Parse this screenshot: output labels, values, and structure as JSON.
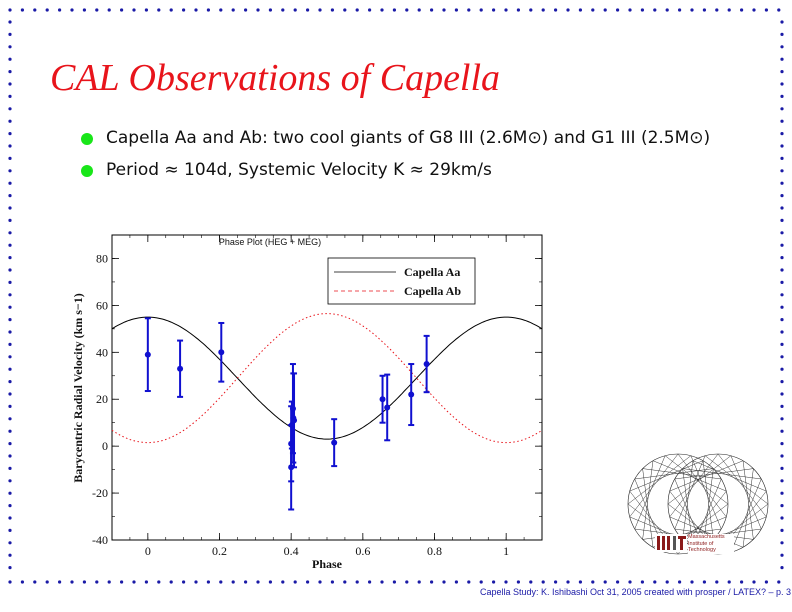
{
  "slide": {
    "title": "CAL Observations of Capella",
    "bullets": [
      {
        "text": "Capella Aa and Ab: two cool giants of G8 III (2.6M⊙) and G1 III (2.5M⊙)"
      },
      {
        "text": "Period ≈ 104d, Systemic Velocity K ≈ 29km/s"
      }
    ],
    "footer": "Capella Study: K. Ishibashi Oct 31, 2005 created with prosper / LATEX? – p. 3",
    "logo_text": "Massachusetts Institute of Technology",
    "colors": {
      "title": "#e8141b",
      "bullet": "#19e619",
      "border_dots": "#1a1aa6",
      "data": "#1010d0"
    }
  },
  "chart_data": {
    "type": "scatter",
    "title": "Phase Plot (HEG + MEG)",
    "xlabel": "Phase",
    "ylabel": "Barycentric Radial Velocity (km s−1)",
    "xlim": [
      -0.1,
      1.1
    ],
    "ylim": [
      -40,
      90
    ],
    "xticks": [
      0,
      0.2,
      0.4,
      0.6,
      0.8,
      1
    ],
    "xticklabels": [
      "0",
      "0.2",
      "0.4",
      "0.6",
      "0.8",
      "1"
    ],
    "yticks": [
      -40,
      -20,
      0,
      20,
      40,
      60,
      80
    ],
    "yticklabels": [
      "-40",
      "-20",
      "0",
      "20",
      "40",
      "60",
      "80"
    ],
    "legend_position": "top-right",
    "series": [
      {
        "name": "Capella Aa",
        "kind": "model-curve",
        "style": "solid",
        "color": "#000000",
        "params": {
          "gamma": 29,
          "amplitude": 26
        }
      },
      {
        "name": "Capella Ab",
        "kind": "model-curve",
        "style": "dotted",
        "color": "#e8141b",
        "params": {
          "gamma": 29,
          "amplitude": 27.5
        }
      }
    ],
    "observations": [
      {
        "x": 0.0,
        "y": 39,
        "err": 15.5
      },
      {
        "x": 0.09,
        "y": 33,
        "err": 12
      },
      {
        "x": 0.205,
        "y": 40,
        "err": 12.5
      },
      {
        "x": 0.4,
        "y": -9,
        "err": 18
      },
      {
        "x": 0.4,
        "y": 1,
        "err": 16
      },
      {
        "x": 0.402,
        "y": 9,
        "err": 10
      },
      {
        "x": 0.405,
        "y": 16,
        "err": 19
      },
      {
        "x": 0.406,
        "y": 12,
        "err": 19
      },
      {
        "x": 0.408,
        "y": 11,
        "err": 20
      },
      {
        "x": 0.52,
        "y": 1.5,
        "err": 10
      },
      {
        "x": 0.655,
        "y": 20,
        "err": 10
      },
      {
        "x": 0.668,
        "y": 16.5,
        "err": 14
      },
      {
        "x": 0.735,
        "y": 22,
        "err": 13
      },
      {
        "x": 0.778,
        "y": 35,
        "err": 12
      }
    ]
  }
}
